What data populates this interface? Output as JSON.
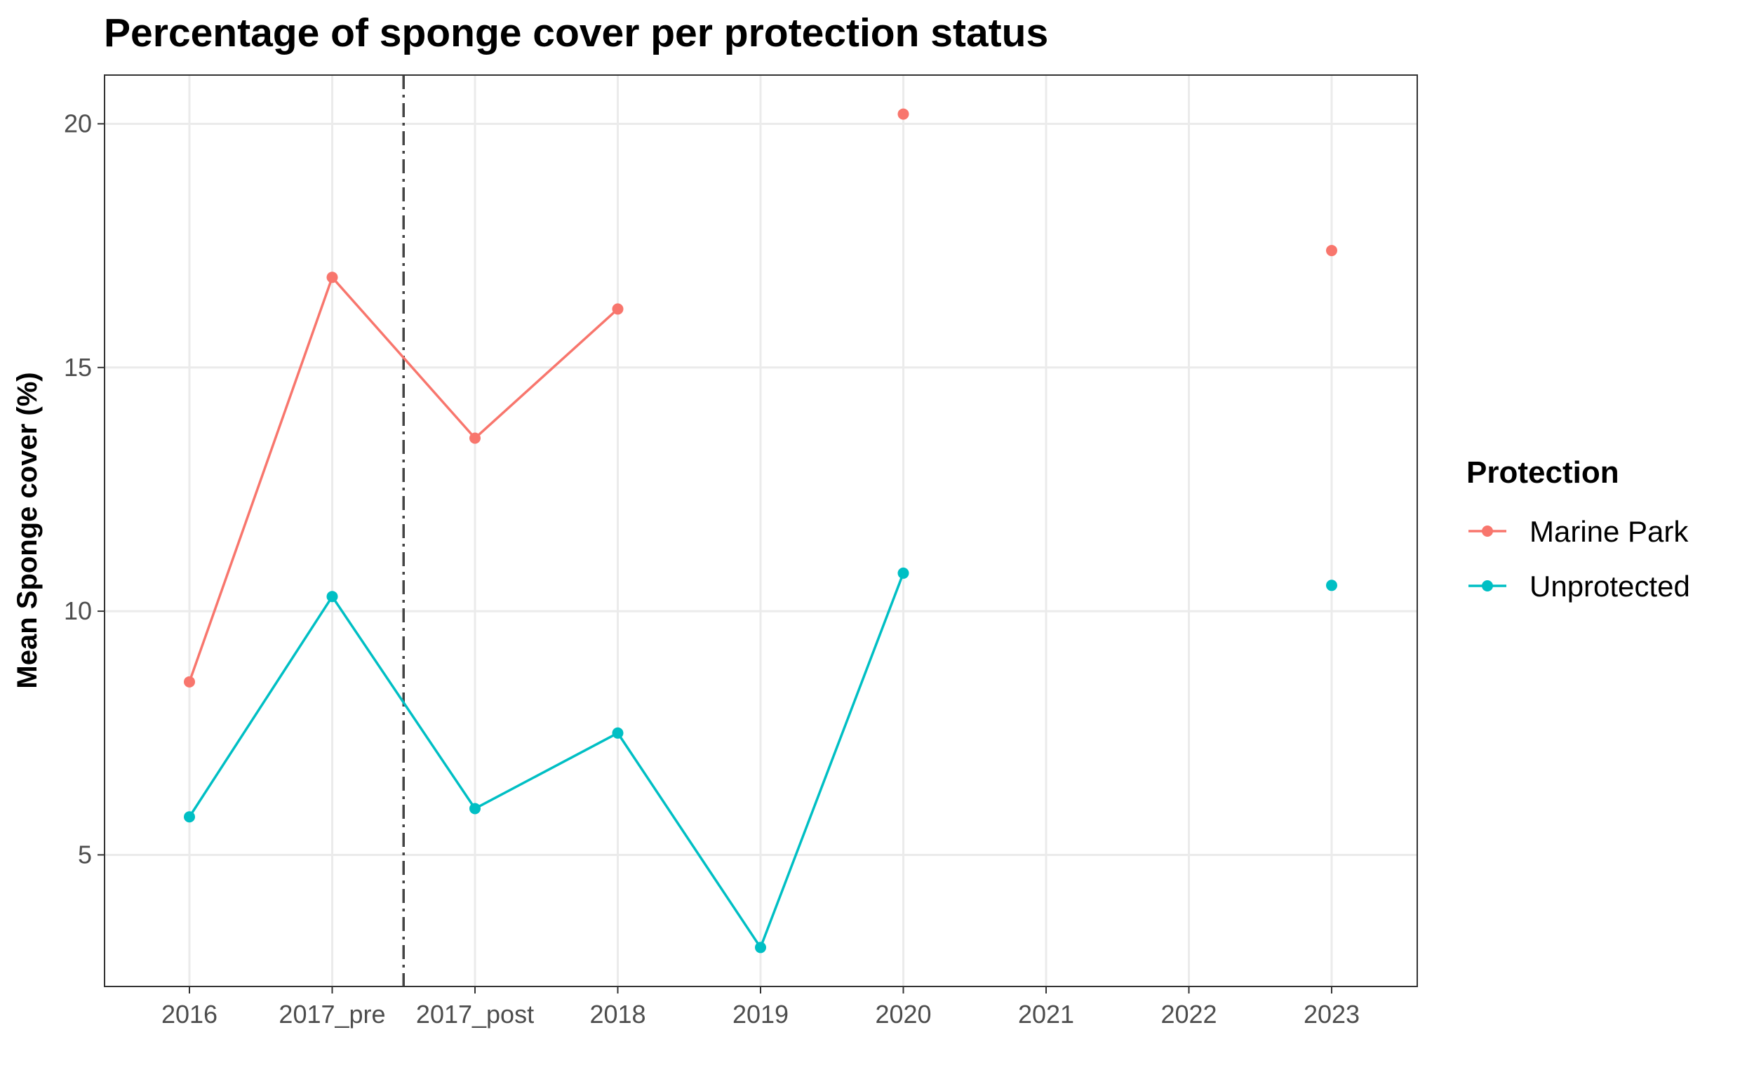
{
  "chart_data": {
    "type": "line",
    "title": "Percentage of sponge cover per protection status",
    "xlabel": "",
    "ylabel": "Mean Sponge cover (%)",
    "categories": [
      "2016",
      "2017_pre",
      "2017_post",
      "2018",
      "2019",
      "2020",
      "2021",
      "2022",
      "2023"
    ],
    "ylim": [
      2.3,
      21.0
    ],
    "yticks": [
      5,
      10,
      15,
      20
    ],
    "grid": true,
    "legend_title": "Protection",
    "legend_position": "right",
    "vline": {
      "between": [
        "2017_pre",
        "2017_post"
      ],
      "style": "dashdot",
      "color": "#444444"
    },
    "series": [
      {
        "name": "Marine Park",
        "color": "#F8766D",
        "values": [
          8.55,
          16.85,
          13.55,
          16.2,
          null,
          20.2,
          null,
          null,
          17.4
        ]
      },
      {
        "name": "Unprotected",
        "color": "#00BFC4",
        "values": [
          5.78,
          10.3,
          5.95,
          7.5,
          3.1,
          10.78,
          null,
          null,
          10.53
        ]
      }
    ]
  }
}
